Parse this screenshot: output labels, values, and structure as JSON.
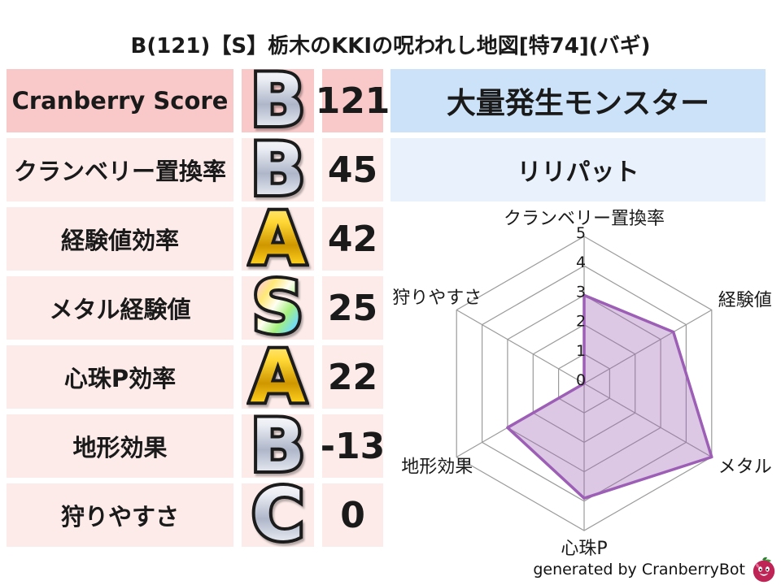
{
  "title": "B(121)【S】栃木のKKIの呪われし地図[特74](バギ)",
  "colors": {
    "score_row_bg": "#f9c9c9",
    "stat_row_bg": "#fcebe9",
    "monster_header_bg": "#cbe2f8",
    "monster_name_bg": "#e9f2fc",
    "radar_stroke": "#9c5fb5",
    "radar_fill_opacity": 0.35,
    "radar_grid": "#9b9b9b",
    "rank_styles": {
      "S": "rainbow",
      "A": "gold",
      "B": "silver",
      "C": "silver"
    }
  },
  "stats": {
    "rows": [
      {
        "label": "Cranberry Score",
        "grade": "B",
        "value": "121"
      },
      {
        "label": "クランベリー置換率",
        "grade": "B",
        "value": "45"
      },
      {
        "label": "経験値効率",
        "grade": "A",
        "value": "42"
      },
      {
        "label": "メタル経験値",
        "grade": "S",
        "value": "25"
      },
      {
        "label": "心珠P効率",
        "grade": "A",
        "value": "22"
      },
      {
        "label": "地形効果",
        "grade": "B",
        "value": "-13"
      },
      {
        "label": "狩りやすさ",
        "grade": "C",
        "value": "0"
      }
    ]
  },
  "monster": {
    "header_label": "大量発生モンスター",
    "name": "リリパット"
  },
  "chart_data": {
    "type": "radar",
    "title": "",
    "axes": [
      "クランベリー置換率",
      "経験値",
      "メタル",
      "心珠P",
      "地形効果",
      "狩りやすさ"
    ],
    "values": [
      3,
      3.5,
      5,
      3.9,
      3,
      0
    ],
    "ticks": [
      0,
      1,
      2,
      3,
      4,
      5
    ],
    "rmax": 5,
    "grid": true,
    "legend": null
  },
  "footer": {
    "credit": "generated by CranberryBot",
    "icon": "cranberry-icon"
  }
}
